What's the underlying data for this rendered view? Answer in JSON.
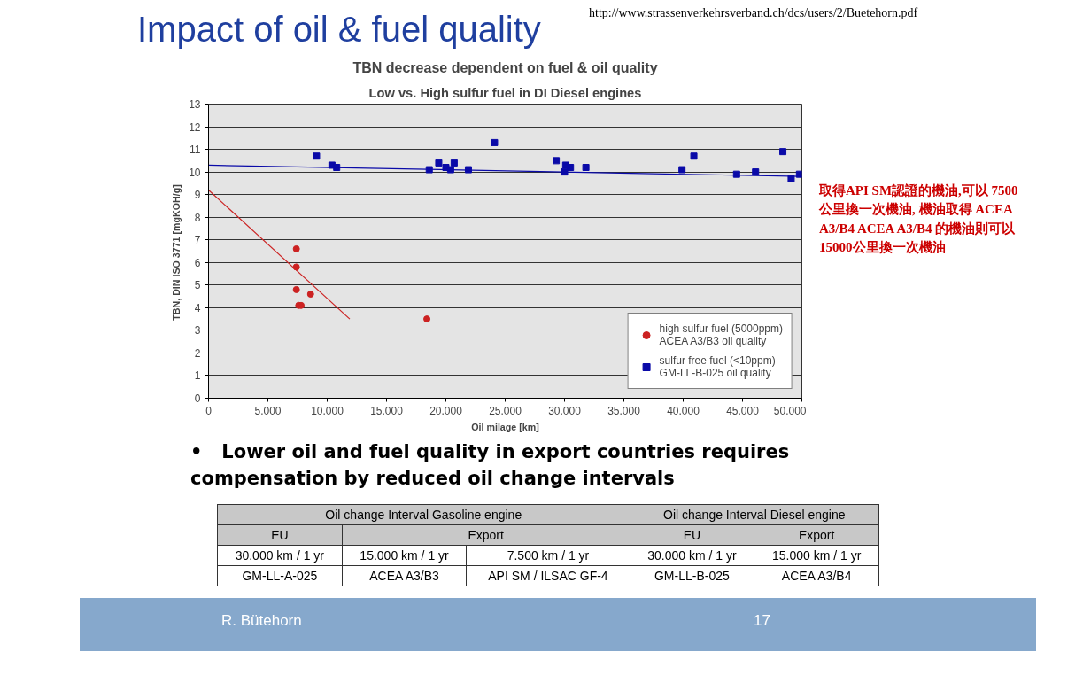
{
  "chart_data": {
    "type": "scatter",
    "title": "TBN decrease dependent on fuel & oil quality",
    "subtitle": "Low vs. High sulfur fuel in DI Diesel engines",
    "xlabel": "Oil milage [km]",
    "ylabel": "TBN, DIN ISO 3771  [mgKOH/g]",
    "xlim": [
      0,
      50000
    ],
    "ylim": [
      0,
      13
    ],
    "xticks": [
      0,
      {
        "value": 5000,
        "label": "5.000"
      },
      {
        "value": 10000,
        "label": "10.000"
      },
      {
        "value": 15000,
        "label": "15.000"
      },
      {
        "value": 20000,
        "label": "20.000"
      },
      {
        "value": 25000,
        "label": "25.000"
      },
      {
        "value": 30000,
        "label": "30.000"
      },
      {
        "value": 35000,
        "label": "35.000"
      },
      {
        "value": 40000,
        "label": "40.000"
      },
      {
        "value": 45000,
        "label": "45.000"
      },
      {
        "value": 50000,
        "label": "50.000"
      }
    ],
    "yticks": [
      0,
      1,
      2,
      3,
      4,
      5,
      6,
      7,
      8,
      9,
      10,
      11,
      12,
      13
    ],
    "grid": "y",
    "legend": "bottom right",
    "series": [
      {
        "name": "high sulfur fuel (5000ppm)\nACEA A3/B3 oil quality",
        "color": "#cc2222",
        "marker": "circle",
        "x": [
          7400,
          7400,
          7400,
          8600,
          7600,
          7800,
          18400
        ],
        "values": [
          6.6,
          5.8,
          4.8,
          4.6,
          4.1,
          4.1,
          3.5
        ]
      },
      {
        "name": "sulfur free fuel (<10ppm)\nGM-LL-B-025 oil quality",
        "color": "#0a0aa8",
        "marker": "square",
        "x": [
          9100,
          10400,
          10800,
          18600,
          19400,
          20000,
          20400,
          20700,
          21900,
          24100,
          29300,
          30100,
          30500,
          30000,
          31800,
          39900,
          40900,
          44500,
          46100,
          48400,
          49100,
          49800
        ],
        "values": [
          10.7,
          10.3,
          10.2,
          10.1,
          10.4,
          10.2,
          10.1,
          10.4,
          10.1,
          11.3,
          10.5,
          10.3,
          10.2,
          10.0,
          10.2,
          10.1,
          10.7,
          9.9,
          10.0,
          10.9,
          9.7,
          9.9
        ]
      },
      {
        "type": "line",
        "color": "#cc2222",
        "x": [
          0,
          11900
        ],
        "values": [
          9.2,
          3.5
        ]
      },
      {
        "type": "line",
        "color": "#0a0aa8",
        "x": [
          0,
          50000
        ],
        "values": [
          10.3,
          9.8
        ]
      }
    ],
    "annotations": [
      "Impact of oil & fuel quality",
      "http://www.strassenverkehrsverband.ch/dcs/users/2/Buetehorn.pdf",
      "取得API SM認證的機油,可以 7500公里換一次機油, 機油取得 ACEA A3/B4 ACEA A3/B4 的機油則可以15000公里換一次機油",
      "•   Lower oil and fuel quality in export countries requires compensation by reduced oil change intervals",
      "Oil change Interval Gasoline engine",
      "Oil change Interval Diesel engine",
      "EU",
      "Export",
      "EU",
      "Export",
      "30.000 km / 1 yr",
      "15.000 km / 1 yr",
      "7.500 km / 1 yr",
      "30.000 km / 1 yr",
      "15.000 km / 1 yr",
      "GM-LL-A-025",
      "ACEA A3/B3",
      "API SM / ILSAC GF-4",
      "GM-LL-B-025",
      "ACEA A3/B4",
      "R. Bütehorn",
      "17"
    ]
  }
}
